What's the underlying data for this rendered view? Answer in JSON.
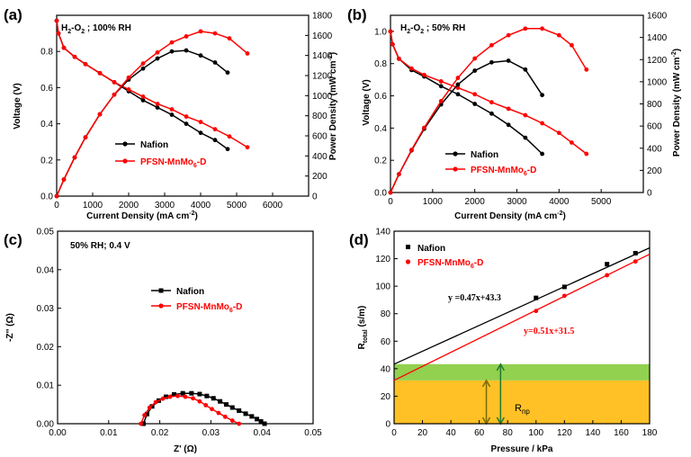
{
  "chart_data": [
    {
      "type": "line",
      "panel_label": "(a)",
      "annotation": "H2-O2 ; 100% RH",
      "xlabel": "Current Density (mA cm-2)",
      "ylabel": "Voltage (V)",
      "y2label": "Power Density (mW cm-2)",
      "xlim": [
        0,
        7000
      ],
      "ylim": [
        0,
        1.0
      ],
      "y2lim": [
        0,
        1800
      ],
      "xticks": [
        0,
        1000,
        2000,
        3000,
        4000,
        5000,
        6000
      ],
      "yticks": [
        0.0,
        0.2,
        0.4,
        0.6,
        0.8
      ],
      "y2ticks": [
        0,
        200,
        400,
        600,
        800,
        1000,
        1200,
        1400,
        1600,
        1800
      ],
      "series": [
        {
          "name": "Nafion",
          "axis": "left",
          "color": "#000000",
          "marker": "circle",
          "x": [
            0,
            50,
            200,
            500,
            800,
            1200,
            1600,
            2000,
            2400,
            2800,
            3200,
            3600,
            4000,
            4400,
            4750
          ],
          "y": [
            0.97,
            0.9,
            0.82,
            0.77,
            0.73,
            0.68,
            0.63,
            0.58,
            0.53,
            0.49,
            0.45,
            0.4,
            0.35,
            0.31,
            0.26
          ]
        },
        {
          "name": "PFSN-MnMo6-D",
          "axis": "left",
          "color": "#ff0000",
          "marker": "circle",
          "x": [
            0,
            50,
            200,
            500,
            800,
            1200,
            1600,
            2000,
            2400,
            2800,
            3200,
            3600,
            4000,
            4400,
            4800,
            5300
          ],
          "y": [
            0.97,
            0.9,
            0.82,
            0.77,
            0.73,
            0.68,
            0.63,
            0.59,
            0.55,
            0.51,
            0.48,
            0.44,
            0.41,
            0.37,
            0.33,
            0.27
          ]
        },
        {
          "name": "Nafion",
          "axis": "right",
          "color": "#000000",
          "marker": "circle",
          "in_legend": false,
          "x": [
            0,
            200,
            500,
            800,
            1200,
            1600,
            2000,
            2400,
            2800,
            3200,
            3600,
            4000,
            4400,
            4750
          ],
          "y": [
            0,
            165,
            385,
            585,
            815,
            1010,
            1160,
            1270,
            1370,
            1440,
            1450,
            1400,
            1330,
            1230
          ]
        },
        {
          "name": "PFSN-MnMo6-D",
          "axis": "right",
          "color": "#ff0000",
          "marker": "circle",
          "in_legend": false,
          "x": [
            0,
            200,
            500,
            800,
            1200,
            1600,
            2000,
            2400,
            2800,
            3200,
            3600,
            4000,
            4400,
            4800,
            5300
          ],
          "y": [
            0,
            165,
            385,
            585,
            815,
            1010,
            1180,
            1320,
            1430,
            1530,
            1590,
            1640,
            1620,
            1570,
            1420
          ]
        }
      ],
      "legend": [
        "Nafion",
        "PFSN-MnMo6-D"
      ]
    },
    {
      "type": "line",
      "panel_label": "(b)",
      "annotation": "H2-O2 ; 50% RH",
      "xlabel": "Current Density (mA cm-2)",
      "ylabel": "Voltage (V)",
      "y2label": "Power Density (mW cm-2)",
      "xlim": [
        0,
        6000
      ],
      "ylim": [
        0,
        1.1
      ],
      "y2lim": [
        0,
        1600
      ],
      "xticks": [
        0,
        1000,
        2000,
        3000,
        4000,
        5000
      ],
      "yticks": [
        0.0,
        0.2,
        0.4,
        0.6,
        0.8,
        1.0
      ],
      "y2ticks": [
        0,
        200,
        400,
        600,
        800,
        1000,
        1200,
        1400,
        1600
      ],
      "series": [
        {
          "name": "Nafion",
          "axis": "left",
          "color": "#000000",
          "marker": "circle",
          "x": [
            0,
            50,
            200,
            500,
            800,
            1200,
            1600,
            2000,
            2400,
            2800,
            3200,
            3600
          ],
          "y": [
            1.0,
            0.92,
            0.83,
            0.76,
            0.72,
            0.66,
            0.61,
            0.55,
            0.49,
            0.42,
            0.34,
            0.24
          ]
        },
        {
          "name": "PFSN-MnMo6-D",
          "axis": "left",
          "color": "#ff0000",
          "marker": "circle",
          "x": [
            0,
            50,
            200,
            500,
            800,
            1200,
            1600,
            2000,
            2400,
            2800,
            3200,
            3600,
            4000,
            4300,
            4650
          ],
          "y": [
            1.0,
            0.92,
            0.83,
            0.77,
            0.73,
            0.69,
            0.65,
            0.61,
            0.56,
            0.52,
            0.48,
            0.43,
            0.37,
            0.31,
            0.24
          ]
        },
        {
          "name": "Nafion",
          "axis": "right",
          "color": "#000000",
          "marker": "circle",
          "in_legend": false,
          "x": [
            0,
            200,
            500,
            800,
            1200,
            1600,
            2000,
            2400,
            2800,
            3200,
            3600
          ],
          "y": [
            0,
            165,
            380,
            575,
            795,
            975,
            1100,
            1175,
            1190,
            1110,
            880
          ]
        },
        {
          "name": "PFSN-MnMo6-D",
          "axis": "right",
          "color": "#ff0000",
          "marker": "circle",
          "in_legend": false,
          "x": [
            0,
            200,
            500,
            800,
            1200,
            1600,
            2000,
            2400,
            2800,
            3200,
            3600,
            4000,
            4300,
            4650
          ],
          "y": [
            0,
            165,
            385,
            585,
            825,
            1035,
            1210,
            1330,
            1420,
            1480,
            1480,
            1420,
            1330,
            1110
          ]
        }
      ],
      "legend": [
        "Nafion",
        "PFSN-MnMo6-D"
      ]
    },
    {
      "type": "line",
      "panel_label": "(c)",
      "annotation": "50% RH; 0.4 V",
      "xlabel": "Z' (Ω)",
      "ylabel": "-Z'' (Ω)",
      "xlim": [
        0,
        0.05
      ],
      "ylim": [
        0,
        0.05
      ],
      "xticks": [
        0.0,
        0.01,
        0.02,
        0.03,
        0.04,
        0.05
      ],
      "yticks": [
        0.0,
        0.01,
        0.02,
        0.03,
        0.04,
        0.05
      ],
      "series": [
        {
          "name": "Nafion",
          "color": "#000000",
          "marker": "square",
          "x": [
            0.0168,
            0.0175,
            0.0185,
            0.0198,
            0.0212,
            0.0228,
            0.0245,
            0.0262,
            0.0278,
            0.0292,
            0.0305,
            0.0318,
            0.033,
            0.0342,
            0.0355,
            0.0368,
            0.038,
            0.039,
            0.0398,
            0.0405
          ],
          "y": [
            0.0,
            0.0025,
            0.0045,
            0.006,
            0.007,
            0.0076,
            0.0079,
            0.0079,
            0.0077,
            0.0072,
            0.0066,
            0.0058,
            0.005,
            0.0042,
            0.0034,
            0.0026,
            0.0019,
            0.0012,
            0.0006,
            0.0
          ]
        },
        {
          "name": "PFSN-MnMo6-D",
          "color": "#ff0000",
          "marker": "circle",
          "x": [
            0.0163,
            0.017,
            0.018,
            0.0192,
            0.0206,
            0.022,
            0.0235,
            0.025,
            0.0265,
            0.0278,
            0.029,
            0.0302,
            0.0315,
            0.0328,
            0.0342,
            0.0355
          ],
          "y": [
            0.0,
            0.0022,
            0.0042,
            0.0056,
            0.0065,
            0.007,
            0.0072,
            0.007,
            0.0066,
            0.0058,
            0.0048,
            0.0038,
            0.0028,
            0.0018,
            0.0008,
            0.0
          ]
        }
      ],
      "legend": [
        "Nafion",
        "PFSN-MnMo6-D"
      ]
    },
    {
      "type": "scatter",
      "panel_label": "(d)",
      "xlabel": "Pressure / kPa",
      "ylabel": "Rtotal (s/m)",
      "xlim": [
        0,
        180
      ],
      "ylim": [
        0,
        140
      ],
      "xticks": [
        0,
        20,
        40,
        60,
        80,
        100,
        120,
        140,
        160,
        180
      ],
      "yticks": [
        0,
        20,
        40,
        60,
        80,
        100,
        120,
        140
      ],
      "series": [
        {
          "name": "Nafion",
          "color": "#000000",
          "marker": "square",
          "x": [
            100,
            120,
            150,
            170
          ],
          "y": [
            91.5,
            99.5,
            116,
            124
          ],
          "fit": {
            "slope": 0.47,
            "intercept": 43.3,
            "label": "y =0.47x+43.3"
          }
        },
        {
          "name": "PFSN-MnMo6-D",
          "color": "#ff0000",
          "marker": "circle",
          "x": [
            100,
            120,
            150,
            170
          ],
          "y": [
            82,
            93,
            108,
            118
          ],
          "fit": {
            "slope": 0.51,
            "intercept": 31.5,
            "label": "y=0.51x+31.5"
          }
        }
      ],
      "bands": [
        {
          "from": 0,
          "to": 31.5,
          "color": "#ffc125"
        },
        {
          "from": 31.5,
          "to": 43.3,
          "color": "#92d050"
        }
      ],
      "band_label": "Rnp",
      "legend": [
        "Nafion",
        "PFSN-MnMo6-D"
      ]
    }
  ]
}
